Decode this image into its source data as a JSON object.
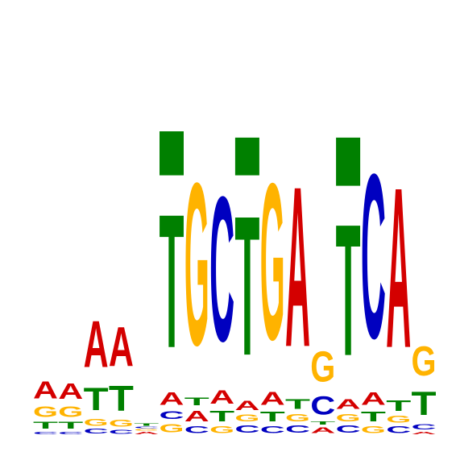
{
  "logo": {
    "type": "sequence-logo",
    "colors": {
      "A": "#d40000",
      "C": "#0000c0",
      "G": "#ffb300",
      "T": "#008000"
    },
    "positions": [
      {
        "stack": [
          [
            "C",
            0.04
          ],
          [
            "T",
            0.1
          ],
          [
            "G",
            0.16
          ],
          [
            "A",
            0.26
          ]
        ]
      },
      {
        "stack": [
          [
            "C",
            0.04
          ],
          [
            "T",
            0.1
          ],
          [
            "G",
            0.16
          ],
          [
            "A",
            0.24
          ]
        ]
      },
      {
        "stack": [
          [
            "C",
            0.07
          ],
          [
            "G",
            0.1
          ],
          [
            "T",
            0.34
          ],
          [
            "A",
            0.71
          ]
        ]
      },
      {
        "stack": [
          [
            "C",
            0.06
          ],
          [
            "G",
            0.1
          ],
          [
            "T",
            0.38
          ],
          [
            "A",
            0.6
          ]
        ]
      },
      {
        "stack": [
          [
            "A",
            0.04
          ],
          [
            "G",
            0.02
          ],
          [
            "C",
            0.02
          ],
          [
            "T",
            0.04
          ]
        ]
      },
      {
        "stack": [
          [
            "G",
            0.13
          ],
          [
            "C",
            0.12
          ],
          [
            "A",
            0.19
          ],
          [
            "T",
            2.04
          ],
          [
            "T-cap",
            0.42
          ]
        ]
      },
      {
        "stack": [
          [
            "C",
            0.1
          ],
          [
            "A",
            0.16
          ],
          [
            "T",
            0.12
          ],
          [
            "G",
            2.48
          ]
        ]
      },
      {
        "stack": [
          [
            "G",
            0.1
          ],
          [
            "T",
            0.16
          ],
          [
            "A",
            0.21
          ],
          [
            "C",
            2.21
          ]
        ]
      },
      {
        "stack": [
          [
            "C",
            0.11
          ],
          [
            "G",
            0.1
          ],
          [
            "A",
            0.14
          ],
          [
            "T",
            2.13
          ],
          [
            "T-cap",
            0.36
          ]
        ]
      },
      {
        "stack": [
          [
            "C",
            0.1
          ],
          [
            "T",
            0.15
          ],
          [
            "A",
            0.2
          ],
          [
            "G",
            2.39
          ]
        ]
      },
      {
        "stack": [
          [
            "C",
            0.11
          ],
          [
            "G",
            0.11
          ],
          [
            "T",
            0.15
          ],
          [
            "A",
            2.45
          ]
        ]
      },
      {
        "stack": [
          [
            "A",
            0.09
          ],
          [
            "T",
            0.05
          ],
          [
            "C",
            0.28
          ],
          [
            "G",
            0.46
          ]
        ]
      },
      {
        "stack": [
          [
            "C",
            0.11
          ],
          [
            "G",
            0.11
          ],
          [
            "A",
            0.15
          ],
          [
            "T",
            2.01
          ],
          [
            "T-cap",
            0.46
          ]
        ]
      },
      {
        "stack": [
          [
            "G",
            0.1
          ],
          [
            "T",
            0.15
          ],
          [
            "A",
            0.19
          ],
          [
            "C",
            2.51
          ]
        ]
      },
      {
        "stack": [
          [
            "C",
            0.1
          ],
          [
            "G",
            0.1
          ],
          [
            "T",
            0.16
          ],
          [
            "A",
            2.45
          ]
        ]
      },
      {
        "stack": [
          [
            "A",
            0.04
          ],
          [
            "C",
            0.08
          ],
          [
            "T",
            0.36
          ],
          [
            "G",
            0.45
          ]
        ]
      }
    ]
  }
}
